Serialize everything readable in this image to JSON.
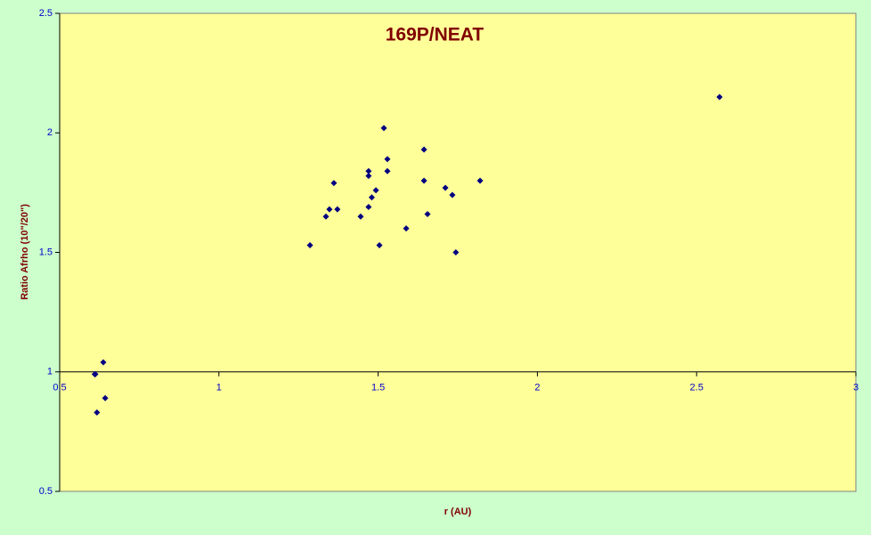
{
  "chart_data": {
    "type": "scatter",
    "title": "169P/NEAT",
    "x_label": "r (AU)",
    "y_label": "Ratio Afrho (10\"/20\")",
    "xlim": [
      0.5,
      3
    ],
    "ylim": [
      0.5,
      2.5
    ],
    "xticks": [
      0.5,
      1,
      1.5,
      2,
      2.5,
      3
    ],
    "yticks": [
      0.5,
      1,
      1.5,
      2,
      2.5
    ],
    "x_axis_crosses": 1,
    "color": "#000080",
    "x": [
      0.61,
      0.612,
      0.637,
      0.617,
      0.643,
      1.286,
      1.336,
      1.347,
      1.361,
      1.372,
      1.445,
      1.47,
      1.47,
      1.47,
      1.48,
      1.493,
      1.504,
      1.518,
      1.529,
      1.529,
      1.588,
      1.644,
      1.644,
      1.655,
      1.711,
      1.733,
      1.744,
      1.82,
      2.572
    ],
    "values": [
      0.99,
      0.99,
      1.04,
      0.83,
      0.89,
      1.53,
      1.65,
      1.68,
      1.79,
      1.68,
      1.65,
      1.84,
      1.82,
      1.69,
      1.73,
      1.76,
      1.53,
      2.02,
      1.89,
      1.84,
      1.6,
      1.93,
      1.8,
      1.66,
      1.77,
      1.74,
      1.5,
      1.8,
      2.15
    ]
  }
}
